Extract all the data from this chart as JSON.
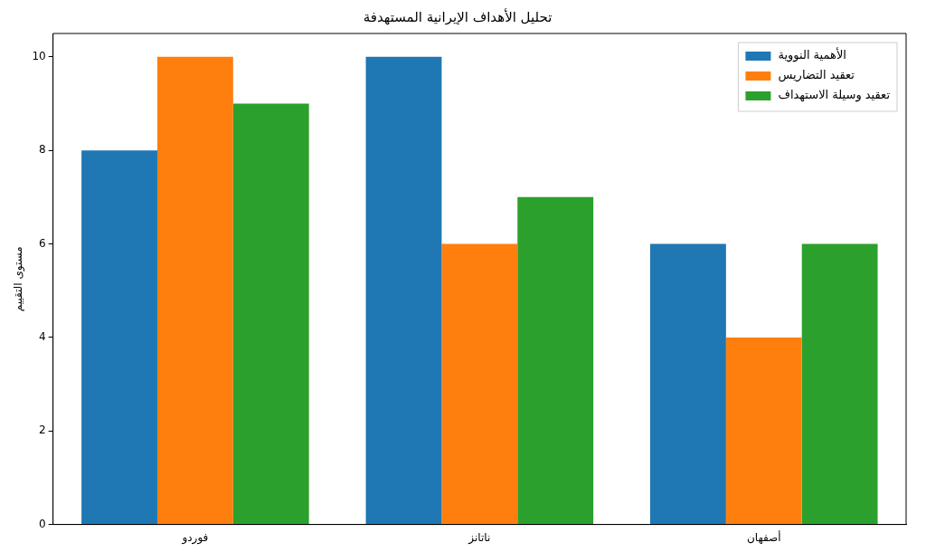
{
  "chart_data": {
    "type": "bar",
    "title": "تحليل الأهداف الإيرانية المستهدفة",
    "ylabel": "مستوى التقييم",
    "categories": [
      "فوردو",
      "ناتانز",
      "أصفهان"
    ],
    "series": [
      {
        "name": "الأهمية النووية",
        "color": "#1f77b4",
        "values": [
          8,
          10,
          6
        ]
      },
      {
        "name": "تعقيد التضاريس",
        "color": "#ff7f0e",
        "values": [
          10,
          6,
          4
        ]
      },
      {
        "name": "تعقيد وسيلة الاستهداف",
        "color": "#2ca02c",
        "values": [
          9,
          7,
          6
        ]
      }
    ],
    "ylim": [
      0,
      10.5
    ],
    "yticks": [
      0,
      2,
      4,
      6,
      8,
      10
    ],
    "grid": false,
    "legend": "top right"
  }
}
